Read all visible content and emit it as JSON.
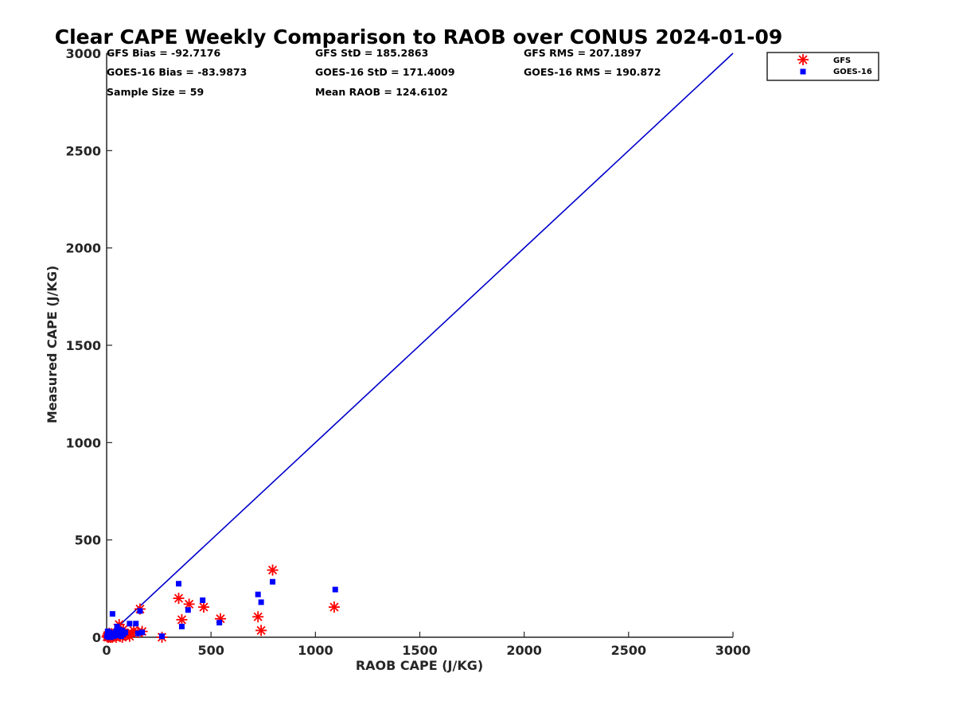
{
  "chart_data": {
    "type": "scatter",
    "title": "Clear CAPE Weekly Comparison to RAOB over CONUS 2024-01-09",
    "xlabel": "RAOB CAPE (J/KG)",
    "ylabel": "Measured CAPE (J/KG)",
    "xlim": [
      0,
      3000
    ],
    "ylim": [
      0,
      3000
    ],
    "xticks": [
      "0",
      "500",
      "1000",
      "1500",
      "2000",
      "2500",
      "3000"
    ],
    "yticks": [
      "0",
      "500",
      "1000",
      "1500",
      "2000",
      "2500",
      "3000"
    ],
    "xtick_values": [
      0,
      500,
      1000,
      1500,
      2000,
      2500,
      3000
    ],
    "ytick_values": [
      0,
      500,
      1000,
      1500,
      2000,
      2500,
      3000
    ],
    "grid": false,
    "legend_position": "top-right",
    "stats": [
      "GFS Bias = -92.7176",
      "GFS StD = 185.2863",
      "GFS RMS = 207.1897",
      "GOES-16 Bias = -83.9873",
      "GOES-16 StD = 171.4009",
      "GOES-16 RMS = 190.872",
      "Sample Size = 59",
      "Mean RAOB = 124.6102"
    ],
    "reference_line": {
      "points": [
        [
          0,
          0
        ],
        [
          3000,
          3000
        ]
      ],
      "color": "#0000cc"
    },
    "series": [
      {
        "name": "GFS",
        "marker": "asterisk",
        "color": "#ff0000",
        "points": [
          [
            2,
            2
          ],
          [
            5,
            10
          ],
          [
            8,
            0
          ],
          [
            10,
            5
          ],
          [
            12,
            20
          ],
          [
            15,
            3
          ],
          [
            18,
            0
          ],
          [
            20,
            8
          ],
          [
            22,
            15
          ],
          [
            25,
            2
          ],
          [
            28,
            0
          ],
          [
            30,
            12
          ],
          [
            35,
            5
          ],
          [
            40,
            25
          ],
          [
            45,
            0
          ],
          [
            50,
            10
          ],
          [
            55,
            30
          ],
          [
            60,
            65
          ],
          [
            65,
            5
          ],
          [
            70,
            20
          ],
          [
            75,
            0
          ],
          [
            80,
            40
          ],
          [
            90,
            10
          ],
          [
            100,
            15
          ],
          [
            110,
            5
          ],
          [
            120,
            20
          ],
          [
            130,
            35
          ],
          [
            150,
            25
          ],
          [
            160,
            145
          ],
          [
            170,
            30
          ],
          [
            265,
            0
          ],
          [
            345,
            200
          ],
          [
            360,
            90
          ],
          [
            395,
            170
          ],
          [
            465,
            155
          ],
          [
            545,
            95
          ],
          [
            725,
            105
          ],
          [
            740,
            35
          ],
          [
            795,
            345
          ],
          [
            1090,
            155
          ]
        ]
      },
      {
        "name": "GOES-16",
        "marker": "square",
        "color": "#0000ff",
        "points": [
          [
            2,
            5
          ],
          [
            5,
            30
          ],
          [
            8,
            10
          ],
          [
            10,
            0
          ],
          [
            12,
            15
          ],
          [
            15,
            25
          ],
          [
            18,
            5
          ],
          [
            20,
            0
          ],
          [
            25,
            10
          ],
          [
            28,
            120
          ],
          [
            30,
            20
          ],
          [
            35,
            5
          ],
          [
            40,
            15
          ],
          [
            45,
            30
          ],
          [
            50,
            55
          ],
          [
            55,
            10
          ],
          [
            60,
            40
          ],
          [
            65,
            20
          ],
          [
            70,
            5
          ],
          [
            75,
            35
          ],
          [
            80,
            15
          ],
          [
            90,
            25
          ],
          [
            110,
            70
          ],
          [
            140,
            70
          ],
          [
            150,
            20
          ],
          [
            160,
            135
          ],
          [
            170,
            25
          ],
          [
            265,
            5
          ],
          [
            345,
            275
          ],
          [
            360,
            55
          ],
          [
            390,
            140
          ],
          [
            460,
            190
          ],
          [
            540,
            75
          ],
          [
            725,
            220
          ],
          [
            740,
            180
          ],
          [
            795,
            285
          ],
          [
            1095,
            245
          ]
        ]
      }
    ]
  }
}
